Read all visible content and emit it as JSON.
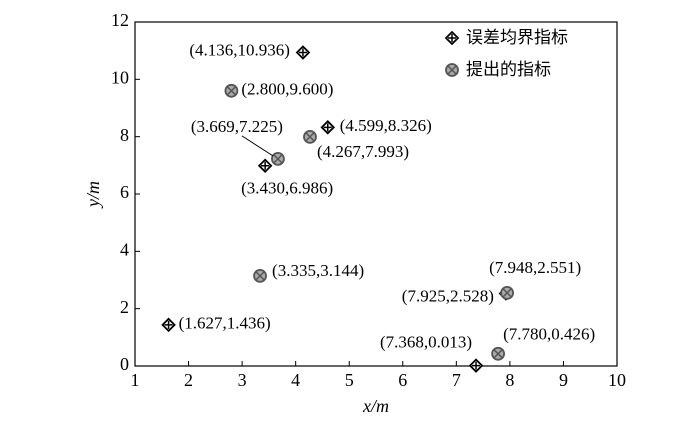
{
  "chart_data": {
    "type": "scatter",
    "x_label": "x/m",
    "y_label": "y/m",
    "xlim": [
      1,
      10
    ],
    "xticks": [
      1,
      2,
      3,
      4,
      5,
      6,
      7,
      8,
      9,
      10
    ],
    "ylim": [
      0,
      12
    ],
    "yticks": [
      0,
      2,
      4,
      6,
      8,
      10,
      12
    ],
    "legend": "upper right",
    "series": [
      {
        "name": "误差均界指标",
        "marker": "diamond-plus",
        "color": "#000000",
        "x": [
          4.136,
          4.599,
          3.43,
          1.627,
          7.368,
          7.925
        ],
        "values": [
          10.936,
          8.326,
          6.986,
          1.436,
          0.013,
          2.528
        ],
        "value_labels": [
          "(4.136,10.936)",
          "(4.599,8.326)",
          "(3.430,6.986)",
          "(1.627,1.436)",
          "(7.368,0.013)",
          "(7.925,2.528)"
        ]
      },
      {
        "name": "提出的指标",
        "marker": "circle-x",
        "color": "#555555",
        "x": [
          2.8,
          4.267,
          3.669,
          3.335,
          7.948,
          7.78
        ],
        "values": [
          9.6,
          7.993,
          7.225,
          3.144,
          2.551,
          0.426
        ],
        "value_labels": [
          "(2.800,9.600)",
          "(4.267,7.993)",
          "(3.669,7.225)",
          "(3.335,3.144)",
          "(7.948,2.551)",
          "(7.780,0.426)"
        ]
      }
    ]
  }
}
